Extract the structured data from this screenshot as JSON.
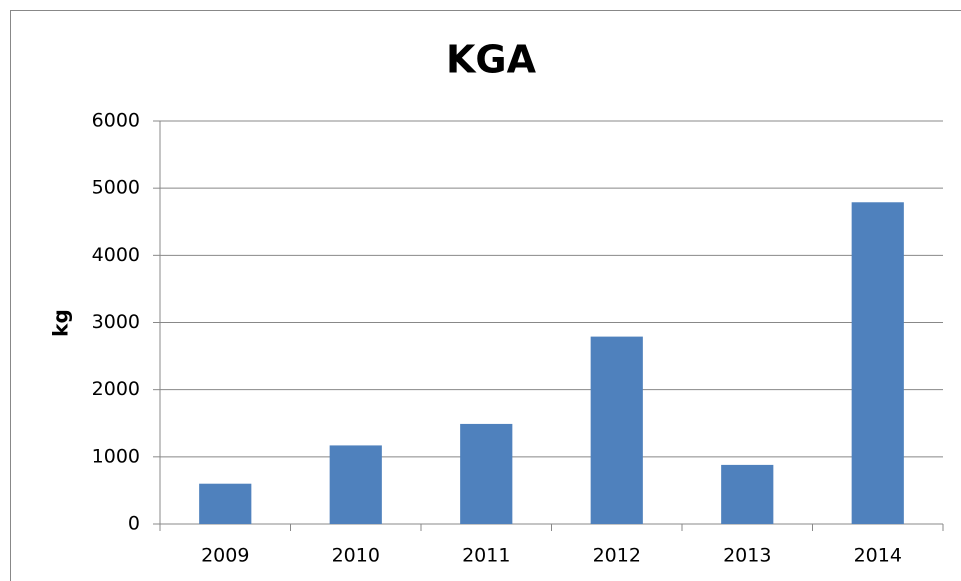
{
  "chart_data": {
    "type": "bar",
    "title": "KGA",
    "y_label": "kg",
    "categories": [
      "2009",
      "2010",
      "2011",
      "2012",
      "2013",
      "2014"
    ],
    "values": [
      600,
      1170,
      1490,
      2790,
      880,
      4790
    ],
    "color": "#4f81bd",
    "ylim": [
      0,
      6000
    ],
    "yticks": [
      0,
      1000,
      2000,
      3000,
      4000,
      5000,
      6000
    ],
    "grid": true
  }
}
